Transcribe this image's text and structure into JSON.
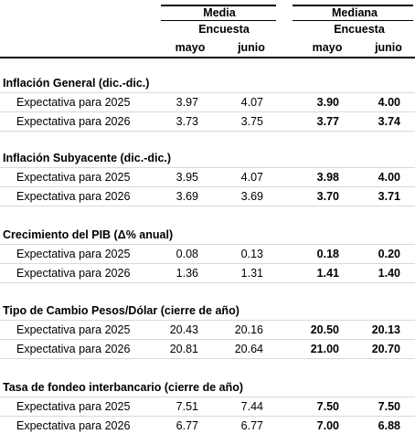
{
  "header": {
    "groups": [
      "Media",
      "Mediana"
    ],
    "survey": [
      "Encuesta",
      "Encuesta"
    ],
    "months": [
      "mayo",
      "junio",
      "mayo",
      "junio"
    ]
  },
  "sections": [
    {
      "title": "Inflación General (dic.-dic.)",
      "rows": [
        {
          "label": "Expectativa para 2025",
          "values": [
            "3.97",
            "4.07",
            "3.90",
            "4.00"
          ]
        },
        {
          "label": "Expectativa para 2026",
          "values": [
            "3.73",
            "3.75",
            "3.77",
            "3.74"
          ]
        }
      ]
    },
    {
      "title": "Inflación Subyacente (dic.-dic.)",
      "rows": [
        {
          "label": "Expectativa para 2025",
          "values": [
            "3.95",
            "4.07",
            "3.98",
            "4.00"
          ]
        },
        {
          "label": "Expectativa para 2026",
          "values": [
            "3.69",
            "3.69",
            "3.70",
            "3.71"
          ]
        }
      ]
    },
    {
      "title": "Crecimiento del PIB (Δ% anual)",
      "rows": [
        {
          "label": "Expectativa para 2025",
          "values": [
            "0.08",
            "0.13",
            "0.18",
            "0.20"
          ]
        },
        {
          "label": "Expectativa para 2026",
          "values": [
            "1.36",
            "1.31",
            "1.41",
            "1.40"
          ]
        }
      ]
    },
    {
      "title": "Tipo de Cambio Pesos/Dólar (cierre de año)",
      "rows": [
        {
          "label": "Expectativa para 2025",
          "values": [
            "20.43",
            "20.16",
            "20.50",
            "20.13"
          ]
        },
        {
          "label": "Expectativa para 2026",
          "values": [
            "20.81",
            "20.64",
            "21.00",
            "20.70"
          ]
        }
      ]
    },
    {
      "title": "Tasa de fondeo interbancario (cierre de año)",
      "rows": [
        {
          "label": "Expectativa para 2025",
          "values": [
            "7.51",
            "7.44",
            "7.50",
            "7.50"
          ]
        },
        {
          "label": "Expectativa para 2026",
          "values": [
            "6.77",
            "6.77",
            "7.00",
            "6.88"
          ]
        }
      ]
    }
  ]
}
